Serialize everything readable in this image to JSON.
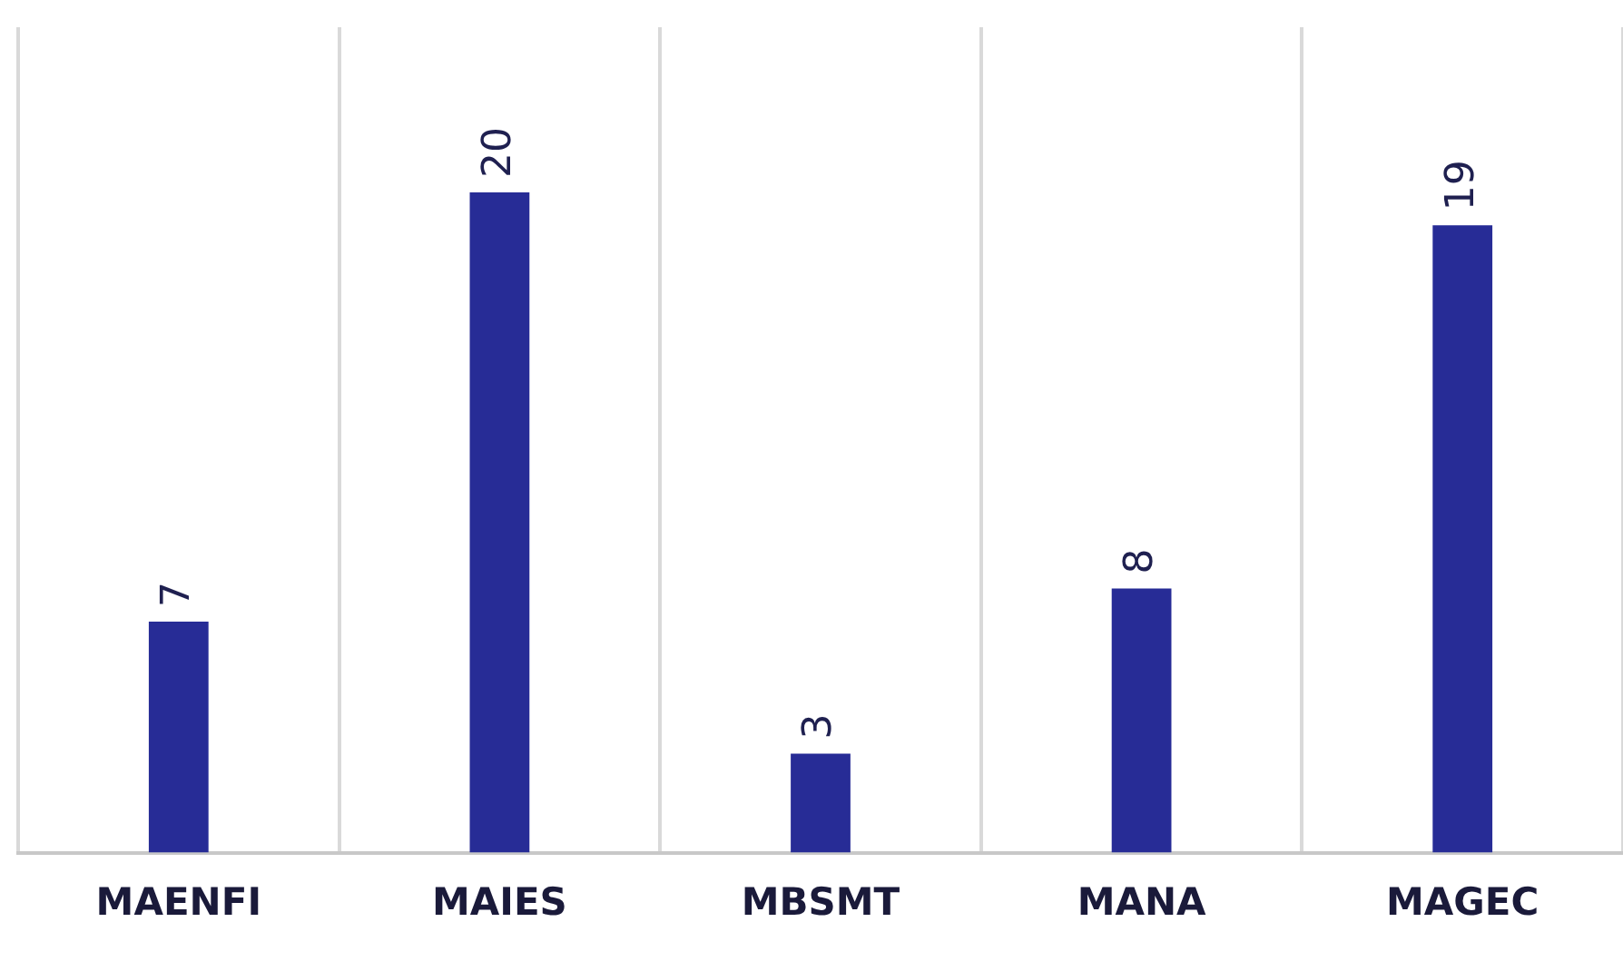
{
  "chart_data": {
    "type": "bar",
    "categories": [
      "MAENFI",
      "MAIES",
      "MBSMT",
      "MANA",
      "MAGEC"
    ],
    "values": [
      7,
      20,
      3,
      8,
      19
    ],
    "color": "#272c96",
    "ylim": [
      0,
      25
    ],
    "grid": "x",
    "legend": false,
    "data_labels": true
  }
}
